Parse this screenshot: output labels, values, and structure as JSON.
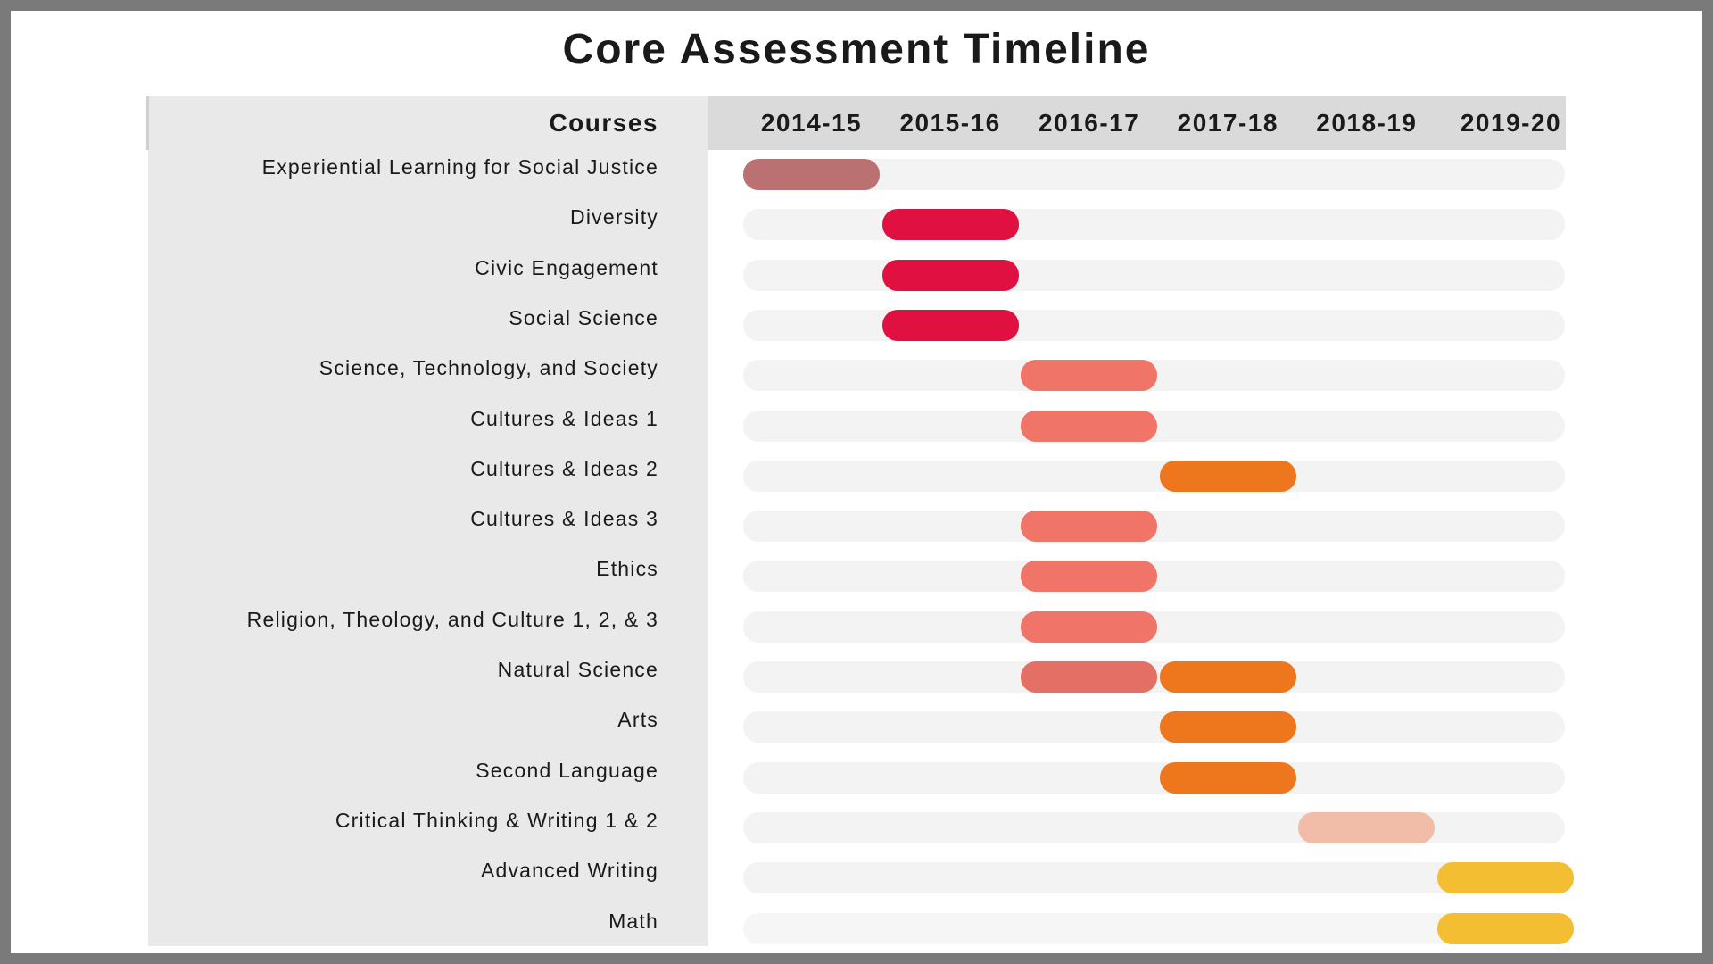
{
  "chart_data": {
    "type": "gantt",
    "title": "Core Assessment Timeline",
    "row_header": "Courses",
    "years": [
      "2014-15",
      "2015-16",
      "2016-17",
      "2017-18",
      "2018-19",
      "2019-20"
    ],
    "colors": {
      "rose": "#bb7171",
      "crimson": "#e01040",
      "salmon": "#f07468",
      "salmon_dark": "#e46f64",
      "orange": "#ee771e",
      "peach": "#f1bda8",
      "yellow": "#f4be33",
      "track": "#f3f3f3"
    },
    "rows": [
      {
        "course": "Experiential Learning for Social Justice",
        "segments": [
          {
            "year": "2014-15",
            "color": "rose"
          }
        ]
      },
      {
        "course": "Diversity",
        "segments": [
          {
            "year": "2015-16",
            "color": "crimson"
          }
        ]
      },
      {
        "course": "Civic Engagement",
        "segments": [
          {
            "year": "2015-16",
            "color": "crimson"
          }
        ]
      },
      {
        "course": "Social Science",
        "segments": [
          {
            "year": "2015-16",
            "color": "crimson"
          }
        ]
      },
      {
        "course": "Science, Technology, and Society",
        "segments": [
          {
            "year": "2016-17",
            "color": "salmon"
          }
        ]
      },
      {
        "course": "Cultures & Ideas 1",
        "segments": [
          {
            "year": "2016-17",
            "color": "salmon"
          }
        ]
      },
      {
        "course": "Cultures & Ideas 2",
        "segments": [
          {
            "year": "2017-18",
            "color": "orange"
          }
        ]
      },
      {
        "course": "Cultures & Ideas 3",
        "segments": [
          {
            "year": "2016-17",
            "color": "salmon"
          }
        ]
      },
      {
        "course": "Ethics",
        "segments": [
          {
            "year": "2016-17",
            "color": "salmon"
          }
        ]
      },
      {
        "course": "Religion, Theology, and Culture 1, 2, & 3",
        "segments": [
          {
            "year": "2016-17",
            "color": "salmon"
          }
        ]
      },
      {
        "course": "Natural Science",
        "segments": [
          {
            "year": "2016-17",
            "color": "salmon_dark"
          },
          {
            "year": "2017-18",
            "color": "orange"
          }
        ]
      },
      {
        "course": "Arts",
        "segments": [
          {
            "year": "2017-18",
            "color": "orange"
          }
        ]
      },
      {
        "course": "Second Language",
        "segments": [
          {
            "year": "2017-18",
            "color": "orange"
          }
        ]
      },
      {
        "course": "Critical Thinking & Writing 1 & 2",
        "segments": [
          {
            "year": "2018-19",
            "color": "peach"
          }
        ]
      },
      {
        "course": "Advanced Writing",
        "segments": [
          {
            "year": "2019-20",
            "color": "yellow"
          }
        ]
      },
      {
        "course": "Math",
        "segments": [
          {
            "year": "2019-20",
            "color": "yellow"
          }
        ]
      }
    ]
  }
}
